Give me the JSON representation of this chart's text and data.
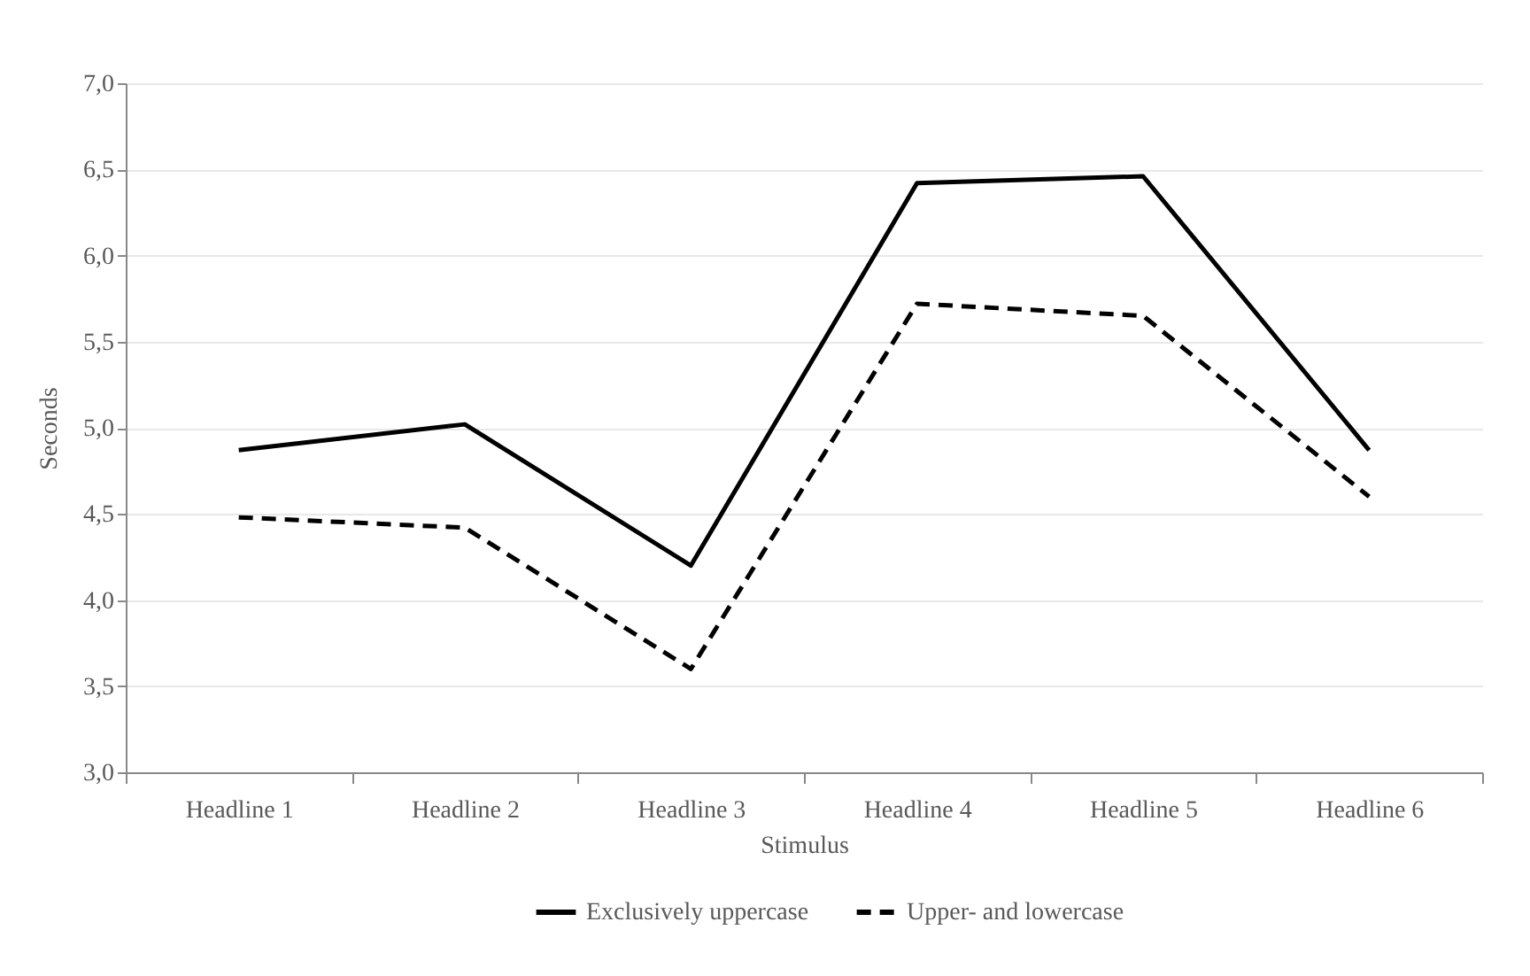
{
  "chart_data": {
    "type": "line",
    "xlabel": "Stimulus",
    "ylabel": "Seconds",
    "categories": [
      "Headline 1",
      "Headline 2",
      "Headline 3",
      "Headline 4",
      "Headline 5",
      "Headline 6"
    ],
    "series": [
      {
        "name": "Exclusively uppercase",
        "color": "#000000",
        "line_style": "solid",
        "values": [
          4.87,
          5.02,
          4.2,
          6.42,
          6.46,
          4.87
        ]
      },
      {
        "name": "Upper- and lowercase",
        "color": "#000000",
        "line_style": "dashed",
        "values": [
          4.48,
          4.42,
          3.6,
          5.72,
          5.65,
          4.6
        ]
      }
    ],
    "ylim": [
      3,
      7
    ],
    "yticks": [
      {
        "value": 3,
        "label": "3,0"
      },
      {
        "value": 3.5,
        "label": "3,5"
      },
      {
        "value": 4,
        "label": "4,0"
      },
      {
        "value": 4.5,
        "label": "4,5"
      },
      {
        "value": 5,
        "label": "5,0"
      },
      {
        "value": 5.5,
        "label": "5,5"
      },
      {
        "value": 6,
        "label": "6,0"
      },
      {
        "value": 6.5,
        "label": "6,5"
      },
      {
        "value": 7,
        "label": "7,0"
      }
    ],
    "grid": "y",
    "legend": "bottom",
    "marker": "none"
  }
}
